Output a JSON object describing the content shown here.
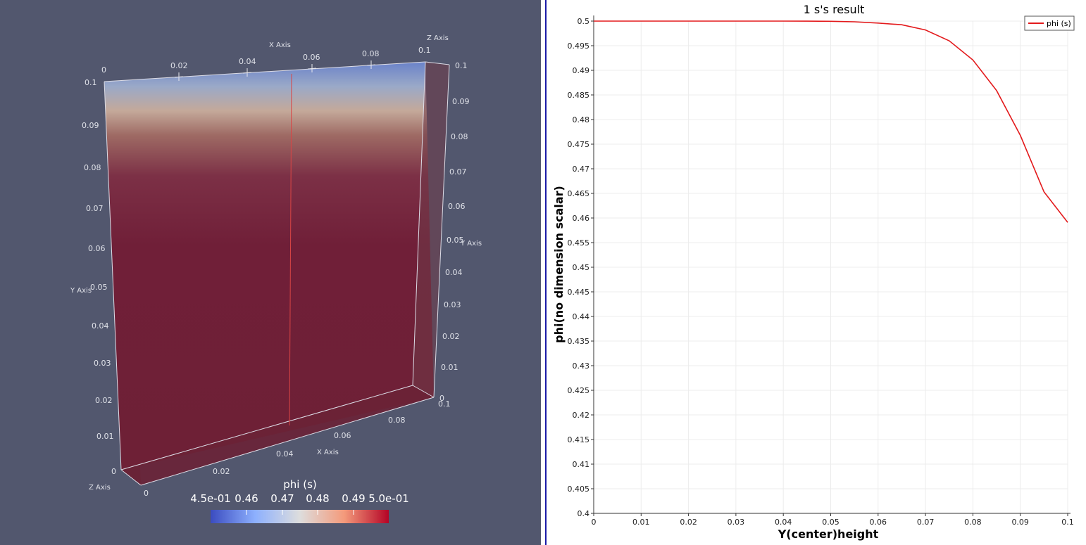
{
  "render_view": {
    "axis_titles": {
      "x": "X Axis",
      "y": "Y Axis",
      "z": "Z Axis"
    },
    "top_x_ticks": [
      "0",
      "0.02",
      "0.04",
      "0.06",
      "0.08",
      "0.1"
    ],
    "bottom_x_ticks": [
      "0.02",
      "0.04",
      "0.06",
      "0.08"
    ],
    "left_y_ticks": [
      "0.1",
      "0.09",
      "0.08",
      "0.07",
      "0.06",
      "0.05",
      "0.04",
      "0.03",
      "0.02",
      "0.01",
      "0"
    ],
    "right_y_ticks": [
      "0.1",
      "0.09",
      "0.08",
      "0.07",
      "0.06",
      "0.05",
      "0.04",
      "0.03",
      "0.02",
      "0.01",
      "0",
      "0.1"
    ],
    "z_tick_bottom": "0",
    "colorbar": {
      "title": "phi (s)",
      "labels": [
        "4.5e-01",
        "0.46",
        "0.47",
        "0.48",
        "0.49",
        "5.0e-01"
      ],
      "colors": {
        "low": "#3b4cc0",
        "mid": "#dddddd",
        "high": "#b40426"
      }
    }
  },
  "chart_data": {
    "type": "line",
    "title": "1 s's result",
    "xlabel": "Y(center)height",
    "ylabel": "phi(no dimension scalar)",
    "xlim": [
      0,
      0.1
    ],
    "ylim": [
      0.4,
      0.5
    ],
    "x_ticks": [
      "0",
      "0.01",
      "0.02",
      "0.03",
      "0.04",
      "0.05",
      "0.06",
      "0.07",
      "0.08",
      "0.09",
      "0.1"
    ],
    "y_ticks": [
      "0.4",
      "0.405",
      "0.41",
      "0.415",
      "0.42",
      "0.425",
      "0.43",
      "0.435",
      "0.44",
      "0.445",
      "0.45",
      "0.455",
      "0.46",
      "0.465",
      "0.47",
      "0.475",
      "0.48",
      "0.485",
      "0.49",
      "0.495",
      "0.5"
    ],
    "grid": true,
    "legend_position": "top-right",
    "series": [
      {
        "name": "phi (s)",
        "color": "#e31a1c",
        "x": [
          0,
          0.01,
          0.02,
          0.03,
          0.04,
          0.045,
          0.05,
          0.055,
          0.06,
          0.065,
          0.07,
          0.075,
          0.08,
          0.085,
          0.09,
          0.095,
          0.1
        ],
        "y": [
          0.5,
          0.5,
          0.5,
          0.5,
          0.5,
          0.49999,
          0.49995,
          0.49985,
          0.4996,
          0.49925,
          0.4982,
          0.496,
          0.4921,
          0.4859,
          0.4768,
          0.4653,
          0.4591
        ]
      }
    ]
  }
}
